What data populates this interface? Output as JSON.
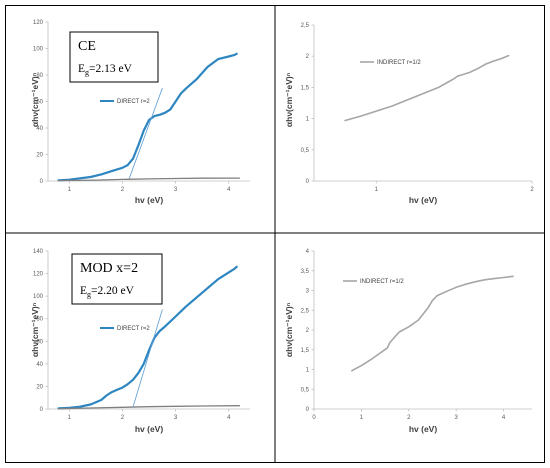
{
  "colors": {
    "direct_series": "#2e86c1",
    "tangent": "#5a9bd5",
    "baseline": "#7f7f7f",
    "indirect_series": "#a6a6a6",
    "axis": "#bfbfbf",
    "frame": "#000000"
  },
  "chart_data": [
    {
      "type": "line",
      "panel": "top-left",
      "annotation_box": {
        "title": "CE",
        "eg_prefix": "E",
        "eg_sub": "g",
        "eg_value": "=2.13 eV"
      },
      "xlabel": "hv (eV)",
      "ylabel": "αhν(cm⁻¹eV)ⁿ",
      "xlim": [
        0.6,
        4.4
      ],
      "ylim": [
        0,
        120
      ],
      "x_ticks": [
        "1",
        "2",
        "3",
        "4"
      ],
      "y_ticks": [
        "0",
        "20",
        "40",
        "60",
        "80",
        "100",
        "120"
      ],
      "legend": "top-left inside plot",
      "series": [
        {
          "name": "DIRECT r=2",
          "role": "data",
          "x": [
            0.8,
            1.0,
            1.2,
            1.4,
            1.6,
            1.8,
            2.0,
            2.1,
            2.2,
            2.3,
            2.4,
            2.5,
            2.6,
            2.7,
            2.8,
            2.9,
            3.0,
            3.1,
            3.2,
            3.4,
            3.6,
            3.8,
            4.0,
            4.1,
            4.15
          ],
          "y": [
            0.5,
            1,
            2,
            3,
            5,
            7.5,
            10,
            12,
            17,
            27,
            38,
            46,
            49,
            50,
            51.5,
            54,
            60,
            66,
            70,
            77,
            86,
            92,
            94,
            95,
            96
          ]
        },
        {
          "role": "baseline",
          "x": [
            0.8,
            1.5,
            2.0,
            2.5,
            3.0,
            3.5,
            4.2
          ],
          "y": [
            0.3,
            0.7,
            1.2,
            1.6,
            1.9,
            2.1,
            2.2
          ]
        },
        {
          "role": "tangent",
          "x": [
            2.13,
            2.75
          ],
          "y": [
            2,
            70
          ]
        }
      ]
    },
    {
      "type": "line",
      "panel": "top-right",
      "xlabel": "hv (eV)",
      "ylabel": "αhν(cm⁻¹eV)ⁿ",
      "xlim": [
        0.6,
        2.0
      ],
      "ylim": [
        0,
        2.5
      ],
      "x_ticks": [
        "1",
        "2"
      ],
      "y_ticks": [
        "0",
        "0,5",
        "1",
        "1,5",
        "2",
        "2,5"
      ],
      "legend": "top-left inside plot",
      "series": [
        {
          "name": "INDIRECT r=1/2",
          "role": "data",
          "x": [
            0.8,
            0.9,
            1.0,
            1.1,
            1.2,
            1.3,
            1.4,
            1.45,
            1.5,
            1.52,
            1.55,
            1.6,
            1.65,
            1.7,
            1.75,
            1.8,
            1.85
          ],
          "y": [
            0.97,
            1.04,
            1.12,
            1.2,
            1.3,
            1.4,
            1.5,
            1.57,
            1.64,
            1.68,
            1.7,
            1.74,
            1.8,
            1.87,
            1.92,
            1.96,
            2.01
          ]
        }
      ]
    },
    {
      "type": "line",
      "panel": "bottom-left",
      "annotation_box": {
        "title": "MOD x=2",
        "eg_prefix": "E",
        "eg_sub": "g",
        "eg_value": "=2.20 eV"
      },
      "xlabel": "hv (eV)",
      "ylabel": "αhν(cm⁻¹eV)ⁿ",
      "xlim": [
        0.6,
        4.4
      ],
      "ylim": [
        0,
        140
      ],
      "x_ticks": [
        "1",
        "2",
        "3",
        "4"
      ],
      "y_ticks": [
        "0",
        "20",
        "40",
        "60",
        "80",
        "100",
        "120",
        "140"
      ],
      "legend": "top-left inside plot",
      "series": [
        {
          "name": "DIRECT r=2",
          "role": "data",
          "x": [
            0.8,
            1.0,
            1.2,
            1.4,
            1.6,
            1.7,
            1.8,
            1.9,
            2.0,
            2.1,
            2.2,
            2.3,
            2.4,
            2.5,
            2.6,
            2.7,
            2.8,
            3.0,
            3.2,
            3.4,
            3.6,
            3.8,
            4.0,
            4.1,
            4.15
          ],
          "y": [
            0.5,
            1,
            2,
            4,
            8,
            12,
            15,
            17,
            19,
            22,
            26,
            32,
            40,
            52,
            63,
            69,
            73,
            82,
            91,
            99,
            107,
            115,
            121,
            124,
            126
          ]
        },
        {
          "role": "baseline",
          "x": [
            0.8,
            1.5,
            2.0,
            2.5,
            3.0,
            3.5,
            4.2
          ],
          "y": [
            0.3,
            1.0,
            1.5,
            2.0,
            2.4,
            2.7,
            2.9
          ]
        },
        {
          "role": "tangent",
          "x": [
            2.2,
            2.75
          ],
          "y": [
            2,
            88
          ]
        }
      ]
    },
    {
      "type": "line",
      "panel": "bottom-right",
      "xlabel": "hv (eV)",
      "ylabel": "αhν(cm⁻¹eV)ⁿ",
      "xlim": [
        0,
        4.6
      ],
      "ylim": [
        0,
        4
      ],
      "x_ticks": [
        "0",
        "1",
        "2",
        "3",
        "4"
      ],
      "y_ticks": [
        "0",
        "0,5",
        "1",
        "1,5",
        "2",
        "2,5",
        "3",
        "3,5",
        "4"
      ],
      "legend": "top-left inside plot",
      "series": [
        {
          "name": "INDIRECT r=1/2",
          "role": "data",
          "x": [
            0.8,
            1.0,
            1.2,
            1.4,
            1.55,
            1.6,
            1.7,
            1.8,
            2.0,
            2.2,
            2.4,
            2.5,
            2.6,
            2.8,
            3.0,
            3.2,
            3.4,
            3.6,
            3.8,
            4.0,
            4.2
          ],
          "y": [
            0.97,
            1.1,
            1.25,
            1.42,
            1.55,
            1.68,
            1.82,
            1.95,
            2.08,
            2.25,
            2.55,
            2.75,
            2.87,
            2.98,
            3.08,
            3.16,
            3.22,
            3.27,
            3.3,
            3.33,
            3.36
          ]
        }
      ]
    }
  ]
}
